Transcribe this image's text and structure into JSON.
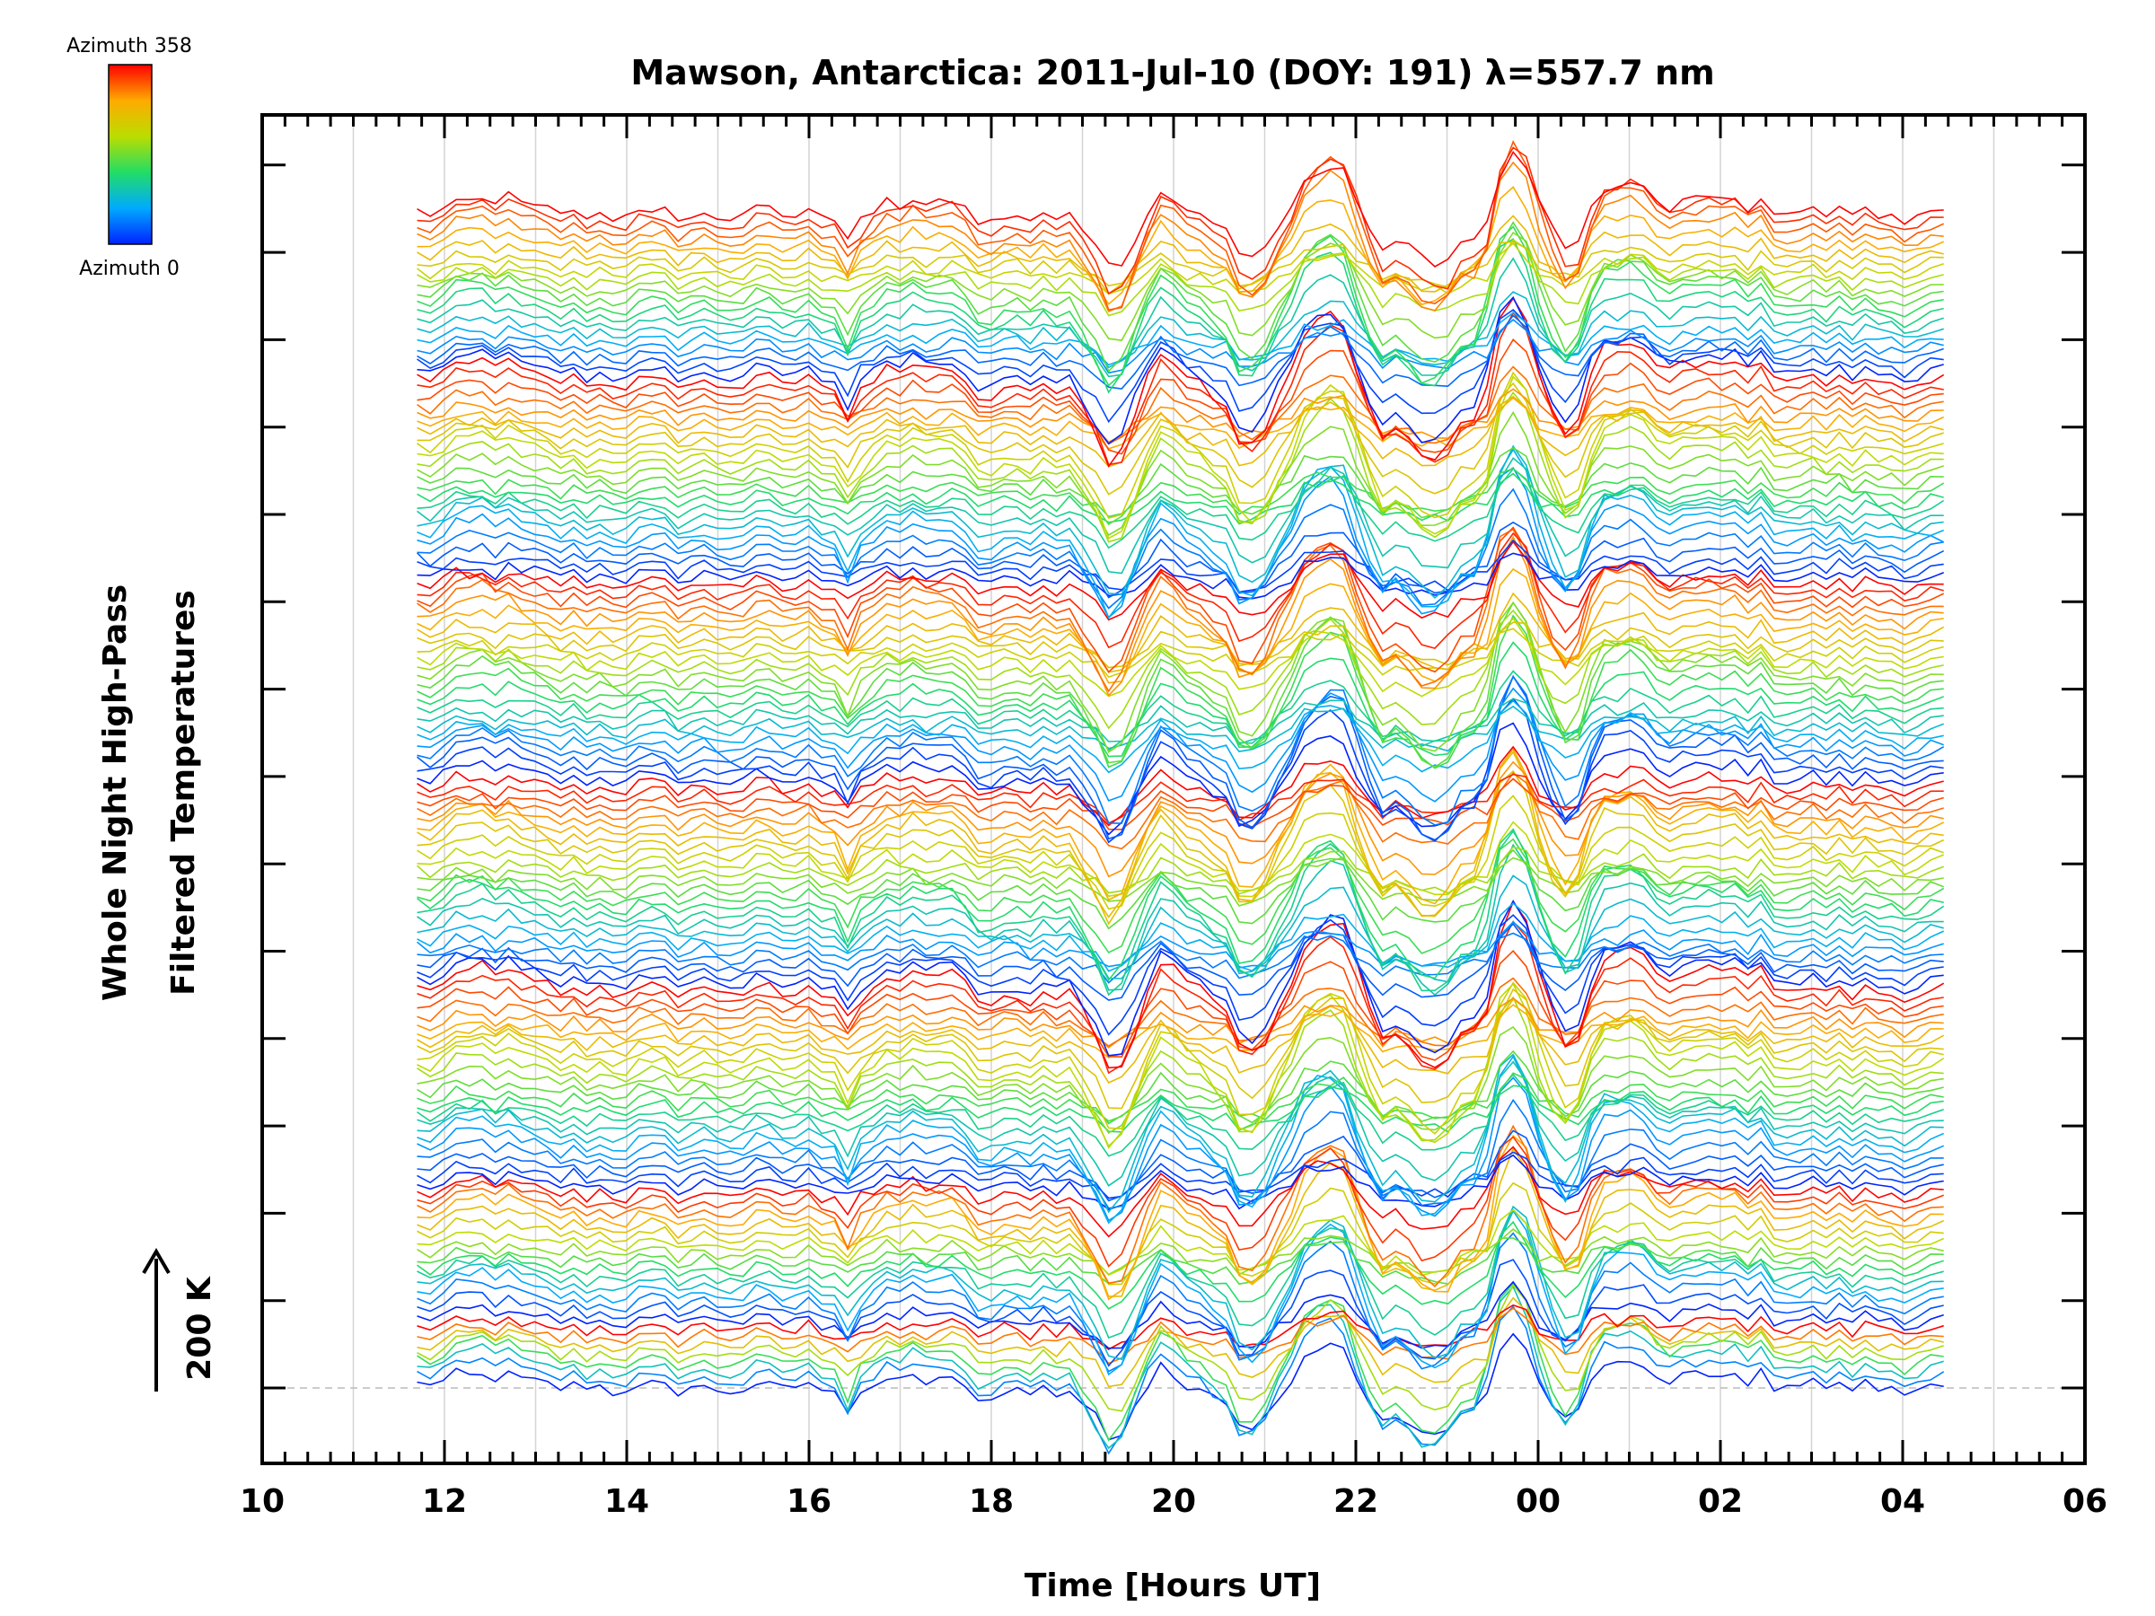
{
  "chart_data": {
    "type": "line",
    "title": "Mawson, Antarctica: 2011-Jul-10 (DOY: 191) λ=557.7 nm",
    "xlabel": "Time [Hours UT]",
    "ylabel_line1": "Whole Night High-Pass",
    "ylabel_line2": "Filtered Temperatures",
    "scale_label": "200 K",
    "colorbar": {
      "top_label": "Azimuth 358",
      "bottom_label": "Azimuth 0"
    },
    "x_tick_labels": [
      "10",
      "12",
      "14",
      "16",
      "18",
      "20",
      "22",
      "00",
      "02",
      "04",
      "06"
    ],
    "x_tick_hours": [
      10,
      12,
      14,
      16,
      18,
      20,
      22,
      24,
      26,
      28,
      30
    ],
    "xlim": [
      10,
      30
    ],
    "data_time_range": [
      11.7,
      28.45
    ],
    "grid": true,
    "legend": "colorbar top-left",
    "colors": {
      "azimuth_low": "#0000ff",
      "azimuth_mid": "#aadd00",
      "azimuth_high": "#ff0000",
      "grid": "#cccccc"
    }
  }
}
